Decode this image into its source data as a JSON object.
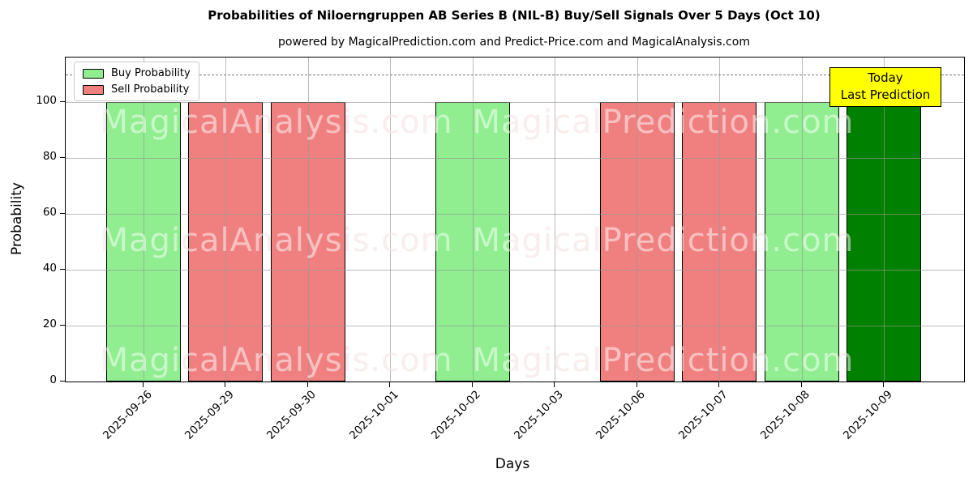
{
  "page": {
    "title": "Probabilities of Niloerngruppen AB Series B (NIL-B) Buy/Sell Signals Over 5 Days (Oct 10)",
    "subtitle": "powered by MagicalPrediction.com and Predict-Price.com and MagicalAnalysis.com"
  },
  "legend": {
    "items": [
      {
        "label": "Buy Probability",
        "color": "#90ee90"
      },
      {
        "label": "Sell Probability",
        "color": "#f08080"
      }
    ]
  },
  "annotation_box": {
    "line1": "Today",
    "line2": "Last Prediction",
    "bg_color": "#ffff00"
  },
  "watermarks": {
    "left_text": "MagicalAnalysis.com",
    "right_text": "MagicalPrediction.com",
    "rows": 3
  },
  "colors": {
    "buy": "#90ee90",
    "sell": "#f08080",
    "today": "#008000",
    "bar_edge": "#000000",
    "grid": "#b0b0b0",
    "dashed_line": "#7a7a7a"
  },
  "chart_data": {
    "type": "bar",
    "title": "Probabilities of Niloerngruppen AB Series B (NIL-B) Buy/Sell Signals Over 5 Days (Oct 10)",
    "xlabel": "Days",
    "ylabel": "Probability",
    "categories": [
      "2025-09-26",
      "2025-09-29",
      "2025-09-30",
      "2025-10-01",
      "2025-10-02",
      "2025-10-03",
      "2025-10-06",
      "2025-10-07",
      "2025-10-08",
      "2025-10-09"
    ],
    "series": [
      {
        "name": "Buy Probability",
        "color": "#90ee90",
        "values": [
          100,
          0,
          0,
          0,
          100,
          0,
          0,
          0,
          100,
          0
        ]
      },
      {
        "name": "Sell Probability",
        "color": "#f08080",
        "values": [
          0,
          100,
          100,
          0,
          0,
          0,
          100,
          100,
          0,
          0
        ]
      },
      {
        "name": "Today Last Prediction",
        "color": "#008000",
        "values": [
          0,
          0,
          0,
          0,
          0,
          0,
          0,
          0,
          0,
          100
        ]
      }
    ],
    "yticks": [
      0,
      20,
      40,
      60,
      80,
      100
    ],
    "ylim": [
      0,
      116
    ],
    "dashed_line_y": 110,
    "grid": true,
    "grid_above_bars": true,
    "legend_position": "upper left"
  }
}
